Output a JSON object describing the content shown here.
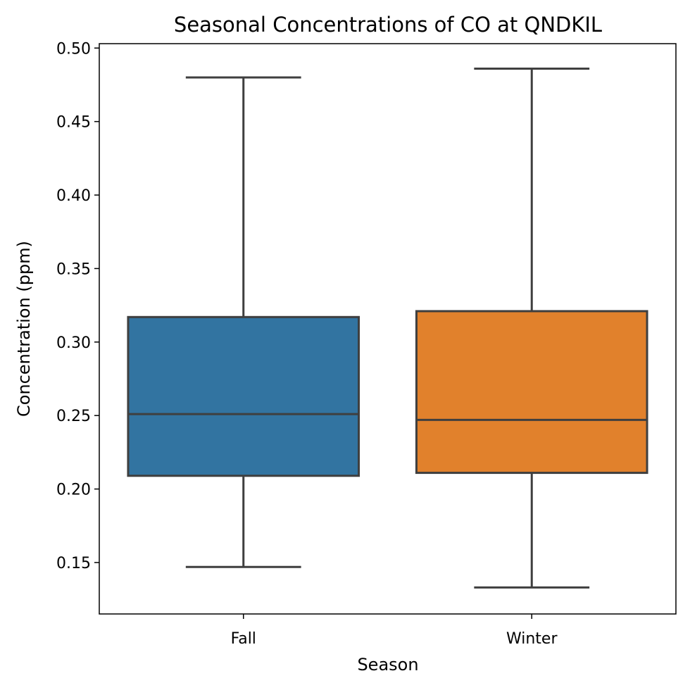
{
  "chart_data": {
    "type": "box",
    "title": "Seasonal Concentrations of CO at QNDKIL",
    "xlabel": "Season",
    "ylabel": "Concentration (ppm)",
    "ylim": [
      0.115,
      0.503
    ],
    "yticks": [
      0.15,
      0.2,
      0.25,
      0.3,
      0.35,
      0.4,
      0.45,
      0.5
    ],
    "ytick_labels": [
      "0.15",
      "0.20",
      "0.25",
      "0.30",
      "0.35",
      "0.40",
      "0.45",
      "0.50"
    ],
    "categories": [
      "Fall",
      "Winter"
    ],
    "series": [
      {
        "category": "Fall",
        "whisker_low": 0.147,
        "q1": 0.209,
        "median": 0.251,
        "q3": 0.317,
        "whisker_high": 0.48,
        "color": "#3274a1"
      },
      {
        "category": "Winter",
        "whisker_low": 0.133,
        "q1": 0.211,
        "median": 0.247,
        "q3": 0.321,
        "whisker_high": 0.486,
        "color": "#e1812c"
      }
    ],
    "line_color": "#3f3f3f",
    "grid": false,
    "legend": "none"
  }
}
